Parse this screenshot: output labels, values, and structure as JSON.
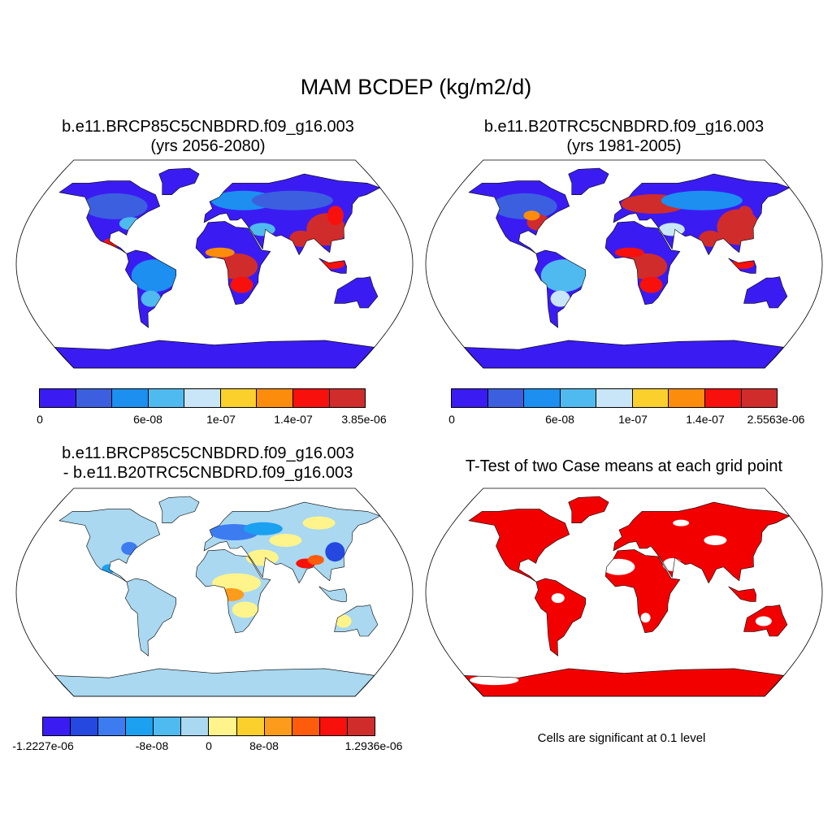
{
  "chart_data": {
    "type": "heatmap",
    "title": "MAM BCDEP (kg/m2/d)",
    "panels": [
      {
        "name": "case",
        "title": "b.e11.BRCP85C5CNBDRD.f09_g16.003",
        "subtitle": "(yrs 2056-2080)",
        "colorbar": {
          "colors": [
            "#3a1cf3",
            "#3c5fe0",
            "#1c8ff0",
            "#4fbaf0",
            "#c8e6f8",
            "#fcd02c",
            "#fc8c0c",
            "#f7100c",
            "#d02c2c"
          ],
          "tick_labels": [
            "0",
            "6e-08",
            "1e-07",
            "1.4e-07",
            "3.85e-06"
          ],
          "min": 0,
          "max": 3.85e-06
        }
      },
      {
        "name": "control",
        "title": "b.e11.B20TRC5CNBDRD.f09_g16.003",
        "subtitle": "(yrs 1981-2005)",
        "colorbar": {
          "colors": [
            "#3a1cf3",
            "#3c5fe0",
            "#1c8ff0",
            "#4fbaf0",
            "#c8e6f8",
            "#fcd02c",
            "#fc8c0c",
            "#f7100c",
            "#d02c2c"
          ],
          "tick_labels": [
            "0",
            "6e-08",
            "1e-07",
            "1.4e-07",
            "2.5563e-06"
          ],
          "min": 0,
          "max": 2.5563e-06
        }
      },
      {
        "name": "difference",
        "title": "b.e11.BRCP85C5CNBDRD.f09_g16.003",
        "subtitle": "- b.e11.B20TRC5CNBDRD.f09_g16.003",
        "colorbar": {
          "colors": [
            "#3a1cf3",
            "#2448e0",
            "#3c7cf0",
            "#1ca0f0",
            "#4fbaf0",
            "#a9d8f0",
            "#fff48c",
            "#fcd02c",
            "#fc9c1c",
            "#fc5c0c",
            "#f7100c",
            "#d02c2c"
          ],
          "tick_labels": [
            "-1.2227e-06",
            "-8e-08",
            "0",
            "8e-08",
            "1.2936e-06"
          ],
          "min": -1.2227e-06,
          "max": 1.2936e-06
        }
      },
      {
        "name": "ttest",
        "title": "T-Test of two Case means at each grid point",
        "note": "Cells are significant at 0.1 level",
        "significant_color": "#f20000"
      }
    ]
  }
}
